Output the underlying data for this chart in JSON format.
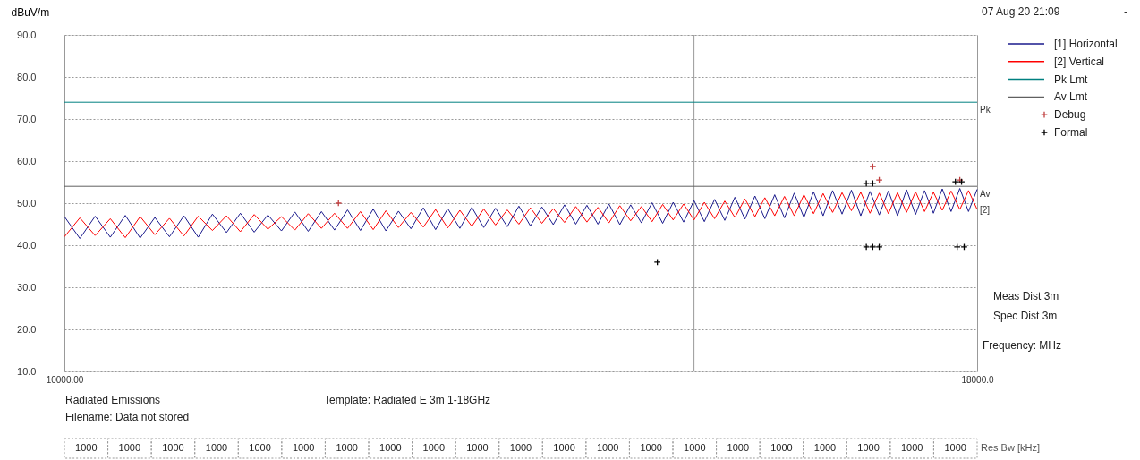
{
  "chart_data": {
    "type": "line",
    "ylabel": "dBuV/m",
    "log": "x",
    "grid": true,
    "legend": "right",
    "ref_lines": [
      {
        "axis": "x",
        "value": 15000,
        "color": "#999999"
      }
    ],
    "xlim": [
      10000,
      18000
    ],
    "xticks": [
      {
        "value": 10000,
        "label": "10000.00"
      },
      {
        "value": 18000,
        "label": "18000.0"
      }
    ],
    "ylim": [
      10,
      90
    ],
    "yticks": [
      {
        "value": 10,
        "label": "10.0"
      },
      {
        "value": 20,
        "label": "20.0"
      },
      {
        "value": 30,
        "label": "30.0"
      },
      {
        "value": 40,
        "label": "40.0"
      },
      {
        "value": 50,
        "label": "50.0"
      },
      {
        "value": 60,
        "label": "60.0"
      },
      {
        "value": 70,
        "label": "70.0"
      },
      {
        "value": 80,
        "label": "80.0"
      },
      {
        "value": 90,
        "label": "90.0"
      }
    ],
    "x": [
      10000,
      10100,
      10200,
      10300,
      10400,
      10500,
      10600,
      10700,
      10800,
      10900,
      11000,
      11100,
      11200,
      11300,
      11400,
      11500,
      11600,
      11700,
      11800,
      11900,
      12000,
      12100,
      12200,
      12300,
      12400,
      12500,
      12600,
      12700,
      12800,
      12900,
      13000,
      13100,
      13200,
      13300,
      13400,
      13500,
      13600,
      13700,
      13800,
      13900,
      14000,
      14100,
      14200,
      14300,
      14400,
      14500,
      14600,
      14700,
      14800,
      14900,
      15000,
      15100,
      15200,
      15300,
      15400,
      15500,
      15600,
      15700,
      15800,
      15900,
      16000,
      16100,
      16200,
      16300,
      16400,
      16500,
      16600,
      16700,
      16800,
      16900,
      17000,
      17100,
      17200,
      17300,
      17400,
      17500,
      17600,
      17700,
      17800,
      17900,
      18000
    ],
    "series": [
      {
        "name": "[1] Horizontal",
        "color": "#1a1a8c",
        "values": [
          46.8,
          41.6,
          46.9,
          41.9,
          47.1,
          41.7,
          46.6,
          42.0,
          47.0,
          41.9,
          47.4,
          43.0,
          47.6,
          43.1,
          47.2,
          43.4,
          47.9,
          43.3,
          48.0,
          43.6,
          48.4,
          43.5,
          48.6,
          43.4,
          48.1,
          43.9,
          48.9,
          43.7,
          48.7,
          44.0,
          49.0,
          44.2,
          48.8,
          44.4,
          49.3,
          44.6,
          49.1,
          44.9,
          49.6,
          45.0,
          49.5,
          45.0,
          49.8,
          44.9,
          49.6,
          45.3,
          50.1,
          45.2,
          50.2,
          45.5,
          50.6,
          45.6,
          50.9,
          45.9,
          51.4,
          46.2,
          51.7,
          46.3,
          52.0,
          46.5,
          52.4,
          46.6,
          52.7,
          47.0,
          53.0,
          47.4,
          53.1,
          47.0,
          52.8,
          47.2,
          52.9,
          47.0,
          53.2,
          47.3,
          53.0,
          47.6,
          53.4,
          48.0,
          53.5,
          48.0,
          53.3
        ]
      },
      {
        "name": "[2] Vertical",
        "color": "#ff0000",
        "values": [
          42.0,
          46.5,
          42.3,
          46.3,
          41.8,
          46.8,
          42.5,
          46.4,
          42.2,
          46.9,
          43.5,
          47.0,
          43.2,
          47.3,
          43.8,
          46.8,
          43.6,
          47.5,
          44.0,
          47.6,
          44.0,
          48.0,
          43.7,
          48.2,
          44.2,
          47.8,
          44.3,
          48.5,
          44.1,
          48.3,
          44.5,
          48.6,
          44.8,
          48.4,
          45.0,
          48.9,
          45.2,
          48.7,
          45.4,
          49.2,
          45.5,
          49.0,
          45.3,
          49.4,
          45.8,
          49.2,
          45.6,
          49.7,
          46.0,
          49.8,
          46.0,
          50.2,
          46.3,
          50.5,
          46.6,
          51.0,
          46.8,
          51.3,
          47.0,
          51.6,
          47.0,
          52.0,
          47.5,
          52.3,
          47.8,
          52.5,
          48.2,
          52.6,
          47.6,
          52.4,
          47.5,
          52.5,
          47.8,
          52.7,
          48.0,
          52.6,
          48.3,
          52.9,
          48.5,
          53.0,
          48.5
        ]
      },
      {
        "name": "Pk Lmt",
        "color": "#008080",
        "x": [
          10000,
          18000
        ],
        "values": [
          74,
          74
        ]
      },
      {
        "name": "Av Lmt",
        "color": "#606060",
        "x": [
          10000,
          18000
        ],
        "values": [
          54,
          54
        ]
      },
      {
        "name": "Debug",
        "type": "scatter",
        "marker": "cross",
        "color": "#c04040",
        "x": [
          11930,
          16830,
          16900,
          17800
        ],
        "values": [
          50,
          58.7,
          55.5,
          55.5
        ]
      },
      {
        "name": "Formal",
        "type": "scatter",
        "marker": "cross",
        "color": "#000000",
        "x": [
          14650,
          16760,
          16830,
          16900,
          17770,
          17850,
          16760,
          16830,
          17750,
          17820
        ],
        "values": [
          36,
          39.6,
          39.6,
          39.6,
          39.6,
          39.6,
          54.7,
          54.7,
          55.1,
          55.1
        ]
      }
    ],
    "annotations": [
      "Pk",
      "Av",
      "[2]",
      "07 Aug 20 21:09",
      "-",
      "Radiated Emissions",
      "Filename: Data not stored",
      "Template: Radiated E 3m 1-18GHz",
      "Meas Dist 3m",
      "Spec Dist 3m",
      "Frequency: MHz",
      "1000",
      "1000",
      "1000",
      "1000",
      "1000",
      "1000",
      "1000",
      "1000",
      "1000",
      "1000",
      "1000",
      "1000",
      "1000",
      "1000",
      "1000",
      "1000",
      "1000",
      "1000",
      "1000",
      "1000",
      "1000",
      "Res Bw [kHz]"
    ]
  }
}
